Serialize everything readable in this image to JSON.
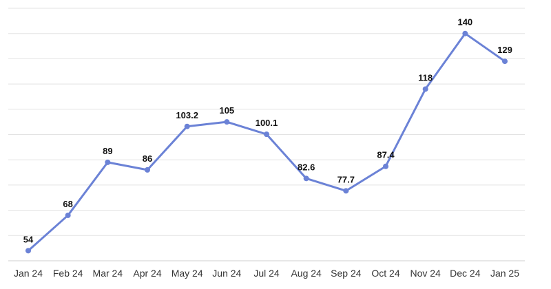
{
  "chart_data": {
    "type": "line",
    "categories": [
      "Jan 24",
      "Feb 24",
      "Mar 24",
      "Apr 24",
      "May 24",
      "Jun 24",
      "Jul 24",
      "Aug 24",
      "Sep 24",
      "Oct 24",
      "Nov 24",
      "Dec 24",
      "Jan 25"
    ],
    "series": [
      {
        "values": [
          54,
          68,
          89,
          86,
          103.2,
          105,
          100.1,
          82.6,
          77.7,
          87.4,
          118,
          140,
          129
        ],
        "labels": [
          "54",
          "68",
          "89",
          "86",
          "103.2",
          "105",
          "100.1",
          "82.6",
          "77.7",
          "87.4",
          "118",
          "140",
          "129"
        ],
        "color": "#6b82d6"
      }
    ],
    "ylim": [
      50,
      150
    ],
    "grid": true,
    "legend": "none"
  }
}
